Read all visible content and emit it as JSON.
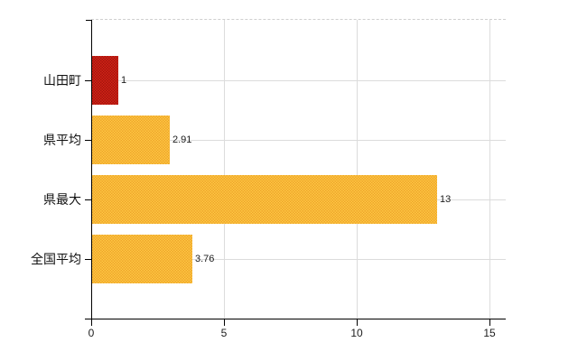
{
  "chart_data": {
    "type": "bar",
    "orientation": "horizontal",
    "title": "",
    "xlabel": "",
    "ylabel": "",
    "categories": [
      "山田町",
      "県平均",
      "県最大",
      "全国平均"
    ],
    "values": [
      1,
      2.91,
      13,
      3.76
    ],
    "value_labels": [
      "1",
      "2.91",
      "13",
      "3.76"
    ],
    "bar_colors": [
      "#d42318",
      "#fdca43",
      "#fdca43",
      "#fdca43"
    ],
    "bar_dot_colors": [
      "#a2140c",
      "#efa32b",
      "#efa32b",
      "#efa32b"
    ],
    "xticks": [
      0,
      5,
      10,
      15
    ],
    "xtick_labels": [
      "0",
      "5",
      "10",
      "15"
    ],
    "xlim": [
      0,
      15
    ],
    "grid": "on",
    "legend": "none",
    "colors": {
      "axis": "#000000",
      "gridline": "#dcdcdc",
      "plot_top_border": "#cfcfcf",
      "background": "#ffffff"
    }
  }
}
